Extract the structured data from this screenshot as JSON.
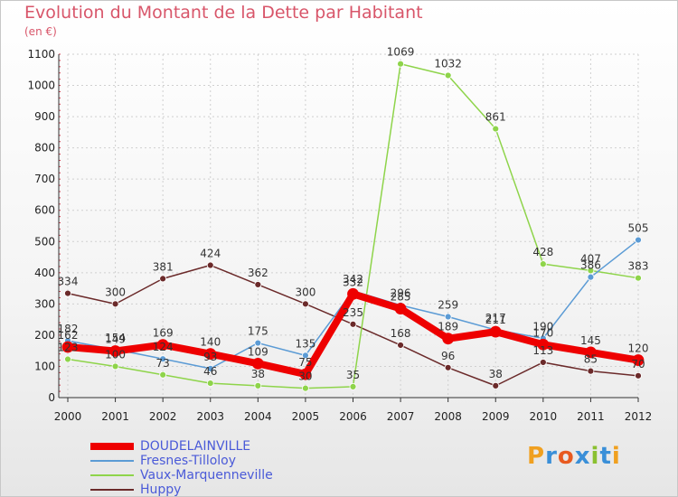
{
  "title": "Evolution du Montant de la Dette par Habitant",
  "subtitle": "(en €)",
  "logo": "Proxiti",
  "chart_data": {
    "type": "line",
    "title": "Evolution du Montant de la Dette par Habitant",
    "ylabel": "(en €)",
    "x": [
      "2000",
      "2001",
      "2002",
      "2003",
      "2004",
      "2005",
      "2006",
      "2007",
      "2008",
      "2009",
      "2010",
      "2011",
      "2012"
    ],
    "ylim": [
      0,
      1100
    ],
    "yticks": [
      0,
      100,
      200,
      300,
      400,
      500,
      600,
      700,
      800,
      900,
      1000,
      1100
    ],
    "grid": true,
    "legend": "bottom-left",
    "series": [
      {
        "name": "DOUDELAINVILLE",
        "color": "#ee0000",
        "values": [
          162,
          149,
          169,
          140,
          109,
          75,
          332,
          285,
          189,
          211,
          170,
          145,
          120
        ]
      },
      {
        "name": "Fresnes-Tilloloy",
        "color": "#5b9bd5",
        "values": [
          182,
          154,
          124,
          93,
          175,
          135,
          342,
          296,
          259,
          217,
          190,
          386,
          505
        ]
      },
      {
        "name": "Vaux-Marquenneville",
        "color": "#8ed44a",
        "values": [
          123,
          100,
          73,
          46,
          38,
          30,
          35,
          1069,
          1032,
          861,
          428,
          407,
          383
        ]
      },
      {
        "name": "Huppy",
        "color": "#6b2a2a",
        "values": [
          334,
          300,
          381,
          424,
          362,
          300,
          235,
          168,
          96,
          38,
          113,
          85,
          70
        ]
      }
    ]
  }
}
